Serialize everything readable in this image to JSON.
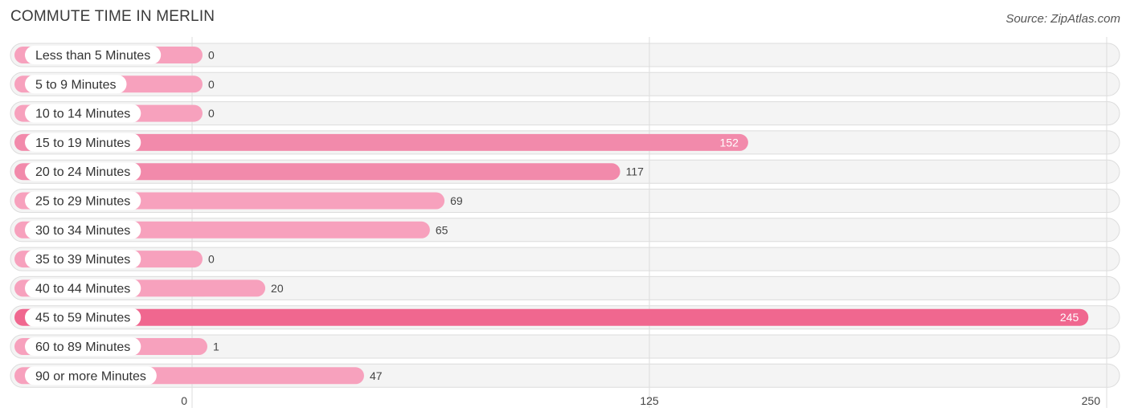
{
  "header": {
    "title": "COMMUTE TIME IN MERLIN",
    "source": "Source: ZipAtlas.com"
  },
  "colors": {
    "bar_normal": "#f7a1bd",
    "bar_mid": "#f28aab",
    "bar_max": "#f0678f",
    "label_dot": "#f290b0"
  },
  "chart_data": {
    "type": "bar",
    "orientation": "horizontal",
    "title": "COMMUTE TIME IN MERLIN",
    "xlim": [
      0,
      250
    ],
    "xticks": [
      0,
      125,
      250
    ],
    "xtick_labels": [
      "0",
      "125",
      "250"
    ],
    "categories": [
      "Less than 5 Minutes",
      "5 to 9 Minutes",
      "10 to 14 Minutes",
      "15 to 19 Minutes",
      "20 to 24 Minutes",
      "25 to 29 Minutes",
      "30 to 34 Minutes",
      "35 to 39 Minutes",
      "40 to 44 Minutes",
      "45 to 59 Minutes",
      "60 to 89 Minutes",
      "90 or more Minutes"
    ],
    "values": [
      0,
      0,
      0,
      152,
      117,
      69,
      65,
      0,
      20,
      245,
      1,
      47
    ],
    "value_labels": [
      "0",
      "0",
      "0",
      "152",
      "117",
      "69",
      "65",
      "0",
      "20",
      "245",
      "1",
      "47"
    ]
  }
}
